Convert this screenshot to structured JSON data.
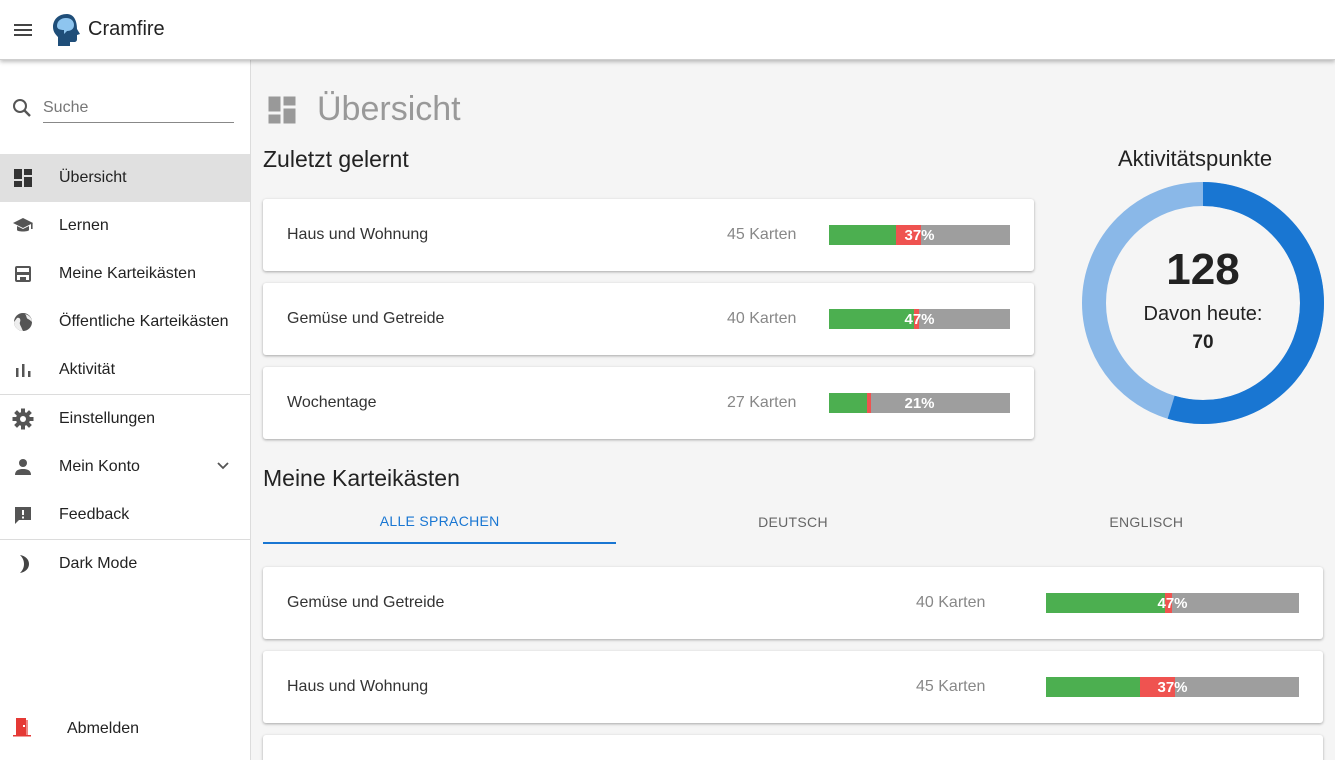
{
  "app": {
    "title": "Cramfire",
    "menu_icon": "menu-icon",
    "logo_icon": "brain-head-icon"
  },
  "sidebar": {
    "search": {
      "placeholder": "Suche",
      "value": ""
    },
    "items": [
      {
        "label": "Übersicht",
        "icon": "dashboard-icon",
        "active": true
      },
      {
        "label": "Lernen",
        "icon": "school-icon"
      },
      {
        "label": "Meine Karteikästen",
        "icon": "inbox-box-icon"
      },
      {
        "label": "Öffentliche Karteikästen",
        "icon": "globe-icon"
      },
      {
        "label": "Aktivität",
        "icon": "bar-chart-icon"
      },
      {
        "label": "Einstellungen",
        "icon": "gear-icon"
      },
      {
        "label": "Mein Konto",
        "icon": "person-icon"
      },
      {
        "label": "Feedback",
        "icon": "feedback-icon"
      },
      {
        "label": "Dark Mode",
        "icon": "moon-icon"
      }
    ],
    "logout": {
      "label": "Abmelden",
      "icon": "exit-door-icon"
    }
  },
  "main": {
    "title": "Übersicht",
    "recent": {
      "title": "Zuletzt gelernt",
      "cards": [
        {
          "name": "Haus und Wohnung",
          "count": "45 Karten",
          "percent": "37%",
          "green": 0.37,
          "red": 0.14
        },
        {
          "name": "Gemüse und Getreide",
          "count": "40 Karten",
          "percent": "47%",
          "green": 0.47,
          "red": 0.03
        },
        {
          "name": "Wochentage",
          "count": "27 Karten",
          "percent": "21%",
          "green": 0.21,
          "red": 0.02
        }
      ]
    },
    "activity": {
      "title": "Aktivitätspunkte",
      "total": "128",
      "today_label": "Davon heute:",
      "today": "70",
      "today_fraction": 0.547,
      "color_today": "#1976d2",
      "color_rest": "#8ab8e8"
    },
    "boxes": {
      "title": "Meine Karteikästen",
      "tabs": [
        "ALLE SPRACHEN",
        "DEUTSCH",
        "ENGLISCH"
      ],
      "active_tab": 0,
      "cards": [
        {
          "name": "Gemüse und Getreide",
          "count": "40 Karten",
          "percent": "47%",
          "green": 0.47,
          "red": 0.03
        },
        {
          "name": "Haus und Wohnung",
          "count": "45 Karten",
          "percent": "37%",
          "green": 0.37,
          "red": 0.14
        }
      ]
    }
  },
  "colors": {
    "accent": "#1976d2",
    "progress_green": "#4caf50",
    "progress_red": "#ef5350",
    "progress_rest": "#9e9e9e"
  }
}
